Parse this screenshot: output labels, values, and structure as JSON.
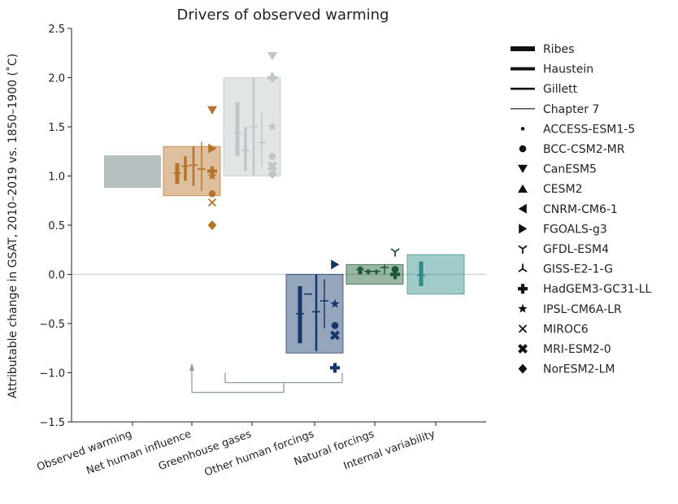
{
  "chart_data": {
    "type": "bar",
    "title": "Drivers of observed warming",
    "ylabel": "Attributable change in GSAT, 2010–2019 vs. 1850–1900 (˚C)",
    "ylim": [
      -1.5,
      2.5
    ],
    "yticks": [
      -1.5,
      -1.0,
      -0.5,
      0.0,
      0.5,
      1.0,
      1.5,
      2.0,
      2.5
    ],
    "yticklabels": [
      "−1.5",
      "−1.0",
      "−0.5",
      "0.0",
      "0.5",
      "1.0",
      "1.5",
      "2.0",
      "2.5"
    ],
    "categories": [
      "Observed warming",
      "Net human influence",
      "Greenhouse gases",
      "Other human forcings",
      "Natural forcings",
      "Internal variability"
    ],
    "colors": {
      "observed": "#a9b4b5",
      "human": "#b5732b",
      "ghg": "#bfc6c8",
      "other": "#15386b",
      "natural": "#1c5a34",
      "internal": "#2e8b86",
      "zero_line": "#cfd3d4",
      "bracket": "#8f9f9b"
    },
    "ranges": [
      {
        "category": "Observed warming",
        "low": 0.88,
        "high": 1.21,
        "color": "#a9b4b5"
      },
      {
        "category": "Net human influence",
        "low": 0.8,
        "high": 1.3,
        "color": "#b5732b"
      },
      {
        "category": "Greenhouse gases",
        "low": 1.0,
        "high": 2.0,
        "color": "#bfc6c8"
      },
      {
        "category": "Other human forcings",
        "low": -0.8,
        "high": 0.0,
        "color": "#15386b"
      },
      {
        "category": "Natural forcings",
        "low": -0.1,
        "high": 0.1,
        "color": "#1c5a34"
      },
      {
        "category": "Internal variability",
        "low": -0.2,
        "high": 0.2,
        "color": "#2e8b86"
      }
    ],
    "assessments": [
      {
        "category": "Net human influence",
        "series": [
          "Ribes",
          "Haustein",
          "Gillett",
          "Chapter 7"
        ],
        "low": [
          0.92,
          0.95,
          0.9,
          0.85
        ],
        "central": [
          1.03,
          1.1,
          1.11,
          1.07
        ],
        "high": [
          1.13,
          1.2,
          1.3,
          1.35
        ]
      },
      {
        "category": "Greenhouse gases",
        "series": [
          "Ribes",
          "Haustein",
          "Gillett",
          "Chapter 7"
        ],
        "low": [
          1.2,
          1.05,
          1.0,
          1.1
        ],
        "central": [
          1.44,
          1.26,
          1.5,
          1.34
        ],
        "high": [
          1.75,
          1.5,
          2.0,
          1.65
        ]
      },
      {
        "category": "Other human forcings",
        "series": [
          "Ribes",
          "Haustein",
          "Gillett",
          "Chapter 7"
        ],
        "low": [
          -0.7,
          -0.2,
          -0.78,
          -0.55
        ],
        "central": [
          -0.4,
          -0.2,
          -0.38,
          -0.27
        ],
        "high": [
          -0.12,
          -0.2,
          0.0,
          -0.05
        ]
      },
      {
        "category": "Natural forcings",
        "series": [
          "Ribes",
          "Haustein",
          "Gillett",
          "Chapter 7"
        ],
        "low": [
          0.0,
          0.0,
          0.0,
          0.0
        ],
        "central": [
          0.05,
          0.03,
          0.03,
          0.07
        ],
        "high": [
          0.08,
          0.05,
          0.05,
          0.1
        ]
      },
      {
        "category": "Internal variability",
        "series": [
          "Ribes"
        ],
        "low": [
          -0.12
        ],
        "central": [
          -0.01
        ],
        "high": [
          0.13
        ]
      }
    ],
    "model_points": [
      {
        "category": "Net human influence",
        "models": [
          "CanESM5",
          "FGOALS-g3",
          "HadGEM3-GC31-LL",
          "IPSL-CM6A-LR",
          "BCC-CSM2-MR",
          "MIROC6",
          "NorESM2-LM"
        ],
        "values": [
          1.67,
          1.28,
          1.05,
          1.0,
          0.82,
          0.73,
          0.5
        ]
      },
      {
        "category": "Greenhouse gases",
        "models": [
          "CanESM5",
          "HadGEM3-GC31-LL",
          "IPSL-CM6A-LR",
          "BCC-CSM2-MR",
          "MRI-ESM2-0",
          "NorESM2-LM"
        ],
        "values": [
          2.22,
          2.0,
          1.5,
          1.2,
          1.1,
          1.02
        ]
      },
      {
        "category": "Other human forcings",
        "models": [
          "FGOALS-g3",
          "IPSL-CM6A-LR",
          "BCC-CSM2-MR",
          "MRI-ESM2-0",
          "HadGEM3-GC31-LL"
        ],
        "values": [
          0.1,
          -0.3,
          -0.52,
          -0.62,
          -0.95
        ]
      },
      {
        "category": "Natural forcings",
        "models": [
          "GFDL-ESM4",
          "BCC-CSM2-MR",
          "HadGEM3-GC31-LL"
        ],
        "values": [
          0.23,
          0.05,
          0.0
        ]
      }
    ],
    "legend": [
      {
        "label": "Ribes",
        "marker": "line-4"
      },
      {
        "label": "Haustein",
        "marker": "line-3"
      },
      {
        "label": "Gillett",
        "marker": "line-2"
      },
      {
        "label": "Chapter 7",
        "marker": "line-1"
      },
      {
        "label": "ACCESS-ESM1-5",
        "marker": "point"
      },
      {
        "label": "BCC-CSM2-MR",
        "marker": "circle"
      },
      {
        "label": "CanESM5",
        "marker": "triangle-down"
      },
      {
        "label": "CESM2",
        "marker": "triangle-up"
      },
      {
        "label": "CNRM-CM6-1",
        "marker": "triangle-left"
      },
      {
        "label": "FGOALS-g3",
        "marker": "triangle-right"
      },
      {
        "label": "GFDL-ESM4",
        "marker": "tri-down"
      },
      {
        "label": "GISS-E2-1-G",
        "marker": "tri-up"
      },
      {
        "label": "HadGEM3-GC31-LL",
        "marker": "plus-filled"
      },
      {
        "label": "IPSL-CM6A-LR",
        "marker": "star"
      },
      {
        "label": "MIROC6",
        "marker": "x"
      },
      {
        "label": "MRI-ESM2-0",
        "marker": "x-filled"
      },
      {
        "label": "NorESM2-LM",
        "marker": "diamond"
      }
    ],
    "grid": false,
    "legend_position": "right"
  }
}
